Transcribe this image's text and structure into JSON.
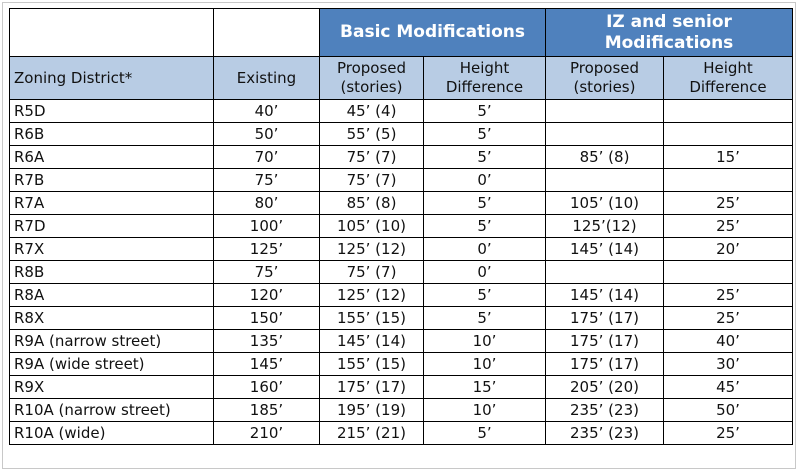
{
  "header_bands": {
    "basic": "Basic Modifications",
    "iz": "IZ and senior Modifications"
  },
  "columns": [
    "Zoning District*",
    "Existing",
    "Proposed (stories)",
    "Height Difference",
    "Proposed (stories)",
    "Height Difference"
  ],
  "rows": [
    [
      "R5D",
      "40’",
      "45’ (4)",
      "5’",
      "",
      ""
    ],
    [
      "R6B",
      "50’",
      "55’ (5)",
      "5’",
      "",
      ""
    ],
    [
      "R6A",
      "70’",
      "75’ (7)",
      "5’",
      "85’ (8)",
      "15’"
    ],
    [
      "R7B",
      "75’",
      "75’ (7)",
      "0’",
      "",
      ""
    ],
    [
      "R7A",
      "80’",
      "85’ (8)",
      "5’",
      "105’ (10)",
      "25’"
    ],
    [
      "R7D",
      "100’",
      "105’ (10)",
      "5’",
      "125’(12)",
      "25’"
    ],
    [
      "R7X",
      "125’",
      "125’ (12)",
      "0’",
      "145’ (14)",
      "20’"
    ],
    [
      "R8B",
      "75’",
      "75’ (7)",
      "0’",
      "",
      ""
    ],
    [
      "R8A",
      "120’",
      "125’ (12)",
      "5’",
      "145’ (14)",
      "25’"
    ],
    [
      "R8X",
      "150’",
      "155’ (15)",
      "5’",
      "175’ (17)",
      "25’"
    ],
    [
      "R9A (narrow street)",
      "135’",
      "145’ (14)",
      "10’",
      "175’ (17)",
      "40’"
    ],
    [
      "R9A (wide street)",
      "145’",
      "155’ (15)",
      "10’",
      "175’ (17)",
      "30’"
    ],
    [
      "R9X",
      "160’",
      "175’ (17)",
      "15’",
      "205’ (20)",
      "45’"
    ],
    [
      "R10A (narrow street)",
      "185’",
      "195’ (19)",
      "10’",
      "235’ (23)",
      "50’"
    ],
    [
      "R10A (wide)",
      "210’",
      "215’ (21)",
      "5’",
      "235’ (23)",
      "25’"
    ]
  ],
  "colors": {
    "band_blue": "#4f81bd",
    "header_light_blue": "#b8cce4"
  }
}
